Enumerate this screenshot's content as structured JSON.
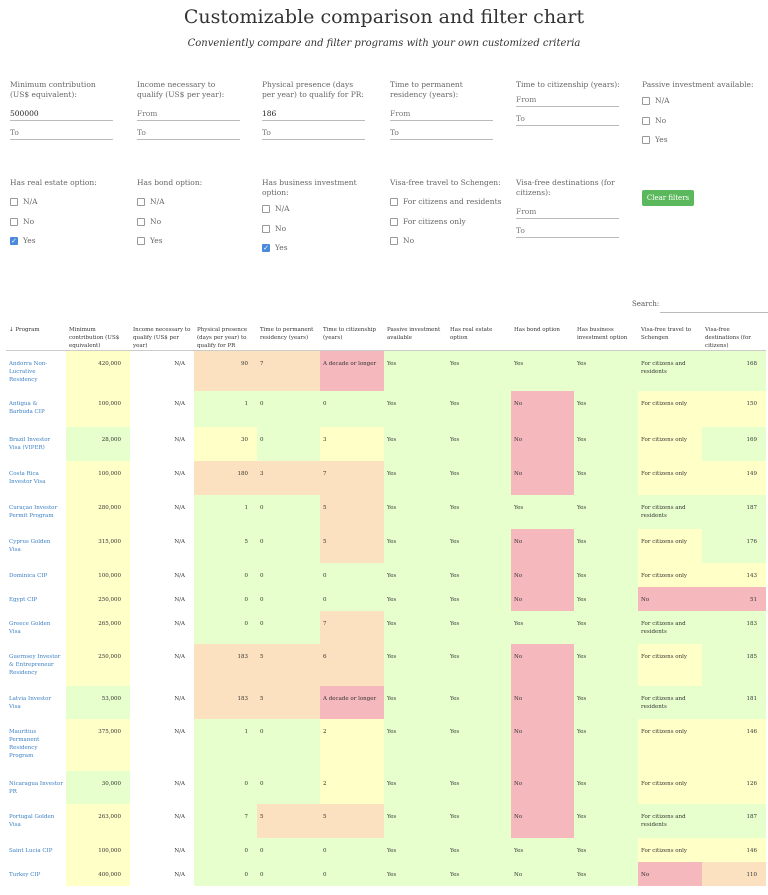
{
  "header": {
    "title": "Customizable comparison and filter chart",
    "subtitle": "Conveniently compare and filter programs with your own customized criteria"
  },
  "filters": {
    "min_contribution": {
      "label": "Minimum contribution (US$ equivalent):",
      "from_value": "500000",
      "to_placeholder": "To"
    },
    "income": {
      "label": "Income necessary to qualify (US$ per year):",
      "from_placeholder": "From",
      "to_placeholder": "To"
    },
    "presence": {
      "label": "Physical presence (days per year) to qualify for PR:",
      "from_value": "186",
      "to_placeholder": "To"
    },
    "time_pr": {
      "label": "Time to permanent residency (years):",
      "from_placeholder": "From",
      "to_placeholder": "To"
    },
    "time_cit": {
      "label": "Time to citizenship (years):",
      "from_placeholder": "From",
      "to_placeholder": "To"
    },
    "passive": {
      "label": "Passive investment available:",
      "options": [
        "N/A",
        "No",
        "Yes"
      ]
    },
    "real_estate": {
      "label": "Has real estate option:",
      "options": [
        "N/A",
        "No",
        "Yes"
      ]
    },
    "bond": {
      "label": "Has bond option:",
      "options": [
        "N/A",
        "No",
        "Yes"
      ]
    },
    "business": {
      "label": "Has business investment option:",
      "options": [
        "N/A",
        "No",
        "Yes"
      ]
    },
    "schengen": {
      "label": "Visa-free travel to Schengen:",
      "options": [
        "For citizens and residents",
        "For citizens only",
        "No"
      ]
    },
    "visa_free": {
      "label": "Visa-free destinations (for citizens):",
      "from_placeholder": "From",
      "to_placeholder": "To"
    },
    "clear_label": "Clear filters"
  },
  "search_label": "Search:",
  "table": {
    "sort_arrow": "↓",
    "headers": [
      "Program",
      "Minimum contribution (US$ equivalent)",
      "Income necessary to qualify (US$ per year)",
      "Physical presence (days per year) to qualify for PR",
      "Time to permanent residency (years)",
      "Time to citizenship (years)",
      "Passive investment available",
      "Has real estate option",
      "Has bond option",
      "Has business investment option",
      "Visa-free travel to Schengen",
      "Visa-free destinations (for citizens)"
    ],
    "rows": [
      {
        "h": 40,
        "cells": [
          "Andorra Non-Lucrative Residency",
          "420,000",
          "N/A",
          "90",
          "7",
          "A decade or longer",
          "Yes",
          "Yes",
          "Yes",
          "Yes",
          "For citizens and residents",
          "168"
        ],
        "colors": [
          "w",
          "y",
          "w",
          "o",
          "o",
          "r",
          "g",
          "g",
          "g",
          "g",
          "g",
          "g"
        ]
      },
      {
        "h": 36,
        "cells": [
          "Antigua & Barbuda CIP",
          "100,000",
          "N/A",
          "1",
          "0",
          "0",
          "Yes",
          "Yes",
          "No",
          "Yes",
          "For citizens only",
          "150"
        ],
        "colors": [
          "w",
          "y",
          "w",
          "g",
          "g",
          "g",
          "g",
          "g",
          "r",
          "g",
          "y",
          "y"
        ]
      },
      {
        "h": 34,
        "cells": [
          "Brazil Investor Visa (VIPER)",
          "28,000",
          "N/A",
          "30",
          "0",
          "3",
          "Yes",
          "Yes",
          "No",
          "Yes",
          "For citizens only",
          "169"
        ],
        "colors": [
          "w",
          "g",
          "w",
          "y",
          "g",
          "y",
          "g",
          "g",
          "r",
          "g",
          "y",
          "g"
        ]
      },
      {
        "h": 34,
        "cells": [
          "Costa Rica Investor Visa",
          "100,000",
          "N/A",
          "180",
          "3",
          "7",
          "Yes",
          "Yes",
          "No",
          "Yes",
          "For citizens only",
          "149"
        ],
        "colors": [
          "w",
          "y",
          "w",
          "o",
          "o",
          "o",
          "g",
          "g",
          "r",
          "g",
          "y",
          "y"
        ]
      },
      {
        "h": 34,
        "cells": [
          "Curaçao Investor Permit Program",
          "280,000",
          "N/A",
          "1",
          "0",
          "5",
          "Yes",
          "Yes",
          "Yes",
          "Yes",
          "For citizens and residents",
          "187"
        ],
        "colors": [
          "w",
          "y",
          "w",
          "g",
          "g",
          "o",
          "g",
          "g",
          "g",
          "g",
          "g",
          "g"
        ]
      },
      {
        "h": 34,
        "cells": [
          "Cyprus Golden Visa",
          "315,000",
          "N/A",
          "5",
          "0",
          "5",
          "Yes",
          "Yes",
          "No",
          "Yes",
          "For citizens only",
          "176"
        ],
        "colors": [
          "w",
          "y",
          "w",
          "g",
          "g",
          "o",
          "g",
          "g",
          "r",
          "g",
          "y",
          "g"
        ]
      },
      {
        "h": 24,
        "cells": [
          "Dominica CIP",
          "100,000",
          "N/A",
          "0",
          "0",
          "0",
          "Yes",
          "Yes",
          "No",
          "Yes",
          "For citizens only",
          "143"
        ],
        "colors": [
          "w",
          "y",
          "w",
          "g",
          "g",
          "g",
          "g",
          "g",
          "r",
          "g",
          "y",
          "y"
        ]
      },
      {
        "h": 24,
        "cells": [
          "Egypt CIP",
          "250,000",
          "N/A",
          "0",
          "0",
          "0",
          "Yes",
          "Yes",
          "No",
          "Yes",
          "No",
          "51"
        ],
        "colors": [
          "w",
          "y",
          "w",
          "g",
          "g",
          "g",
          "g",
          "g",
          "r",
          "g",
          "r",
          "r"
        ]
      },
      {
        "h": 33,
        "cells": [
          "Greece Golden Visa",
          "265,000",
          "N/A",
          "0",
          "0",
          "7",
          "Yes",
          "Yes",
          "Yes",
          "Yes",
          "For citizens and residents",
          "183"
        ],
        "colors": [
          "w",
          "y",
          "w",
          "g",
          "g",
          "o",
          "g",
          "g",
          "g",
          "g",
          "g",
          "g"
        ]
      },
      {
        "h": 42,
        "cells": [
          "Guernsey Investor & Entrepreneur Residency",
          "250,000",
          "N/A",
          "183",
          "5",
          "6",
          "Yes",
          "Yes",
          "No",
          "Yes",
          "For citizens only",
          "185"
        ],
        "colors": [
          "w",
          "y",
          "w",
          "o",
          "o",
          "o",
          "g",
          "g",
          "r",
          "g",
          "y",
          "g"
        ]
      },
      {
        "h": 33,
        "cells": [
          "Latvia Investor Visa",
          "53,000",
          "N/A",
          "183",
          "5",
          "A decade or longer",
          "Yes",
          "Yes",
          "No",
          "Yes",
          "For citizens and residents",
          "181"
        ],
        "colors": [
          "w",
          "g",
          "w",
          "o",
          "o",
          "r",
          "g",
          "g",
          "r",
          "g",
          "g",
          "g"
        ]
      },
      {
        "h": 52,
        "cells": [
          "Mauritius Permanent Residency Program",
          "375,000",
          "N/A",
          "1",
          "0",
          "2",
          "Yes",
          "Yes",
          "No",
          "Yes",
          "For citizens only",
          "146"
        ],
        "colors": [
          "w",
          "y",
          "w",
          "g",
          "g",
          "y",
          "g",
          "g",
          "r",
          "g",
          "y",
          "y"
        ]
      },
      {
        "h": 33,
        "cells": [
          "Nicaragua Investor PR",
          "30,000",
          "N/A",
          "0",
          "0",
          "2",
          "Yes",
          "Yes",
          "No",
          "Yes",
          "For citizens only",
          "126"
        ],
        "colors": [
          "w",
          "g",
          "w",
          "g",
          "g",
          "y",
          "g",
          "g",
          "r",
          "g",
          "y",
          "y"
        ]
      },
      {
        "h": 34,
        "cells": [
          "Portugal Golden Visa",
          "263,000",
          "N/A",
          "7",
          "5",
          "5",
          "Yes",
          "Yes",
          "No",
          "Yes",
          "For citizens and residents",
          "187"
        ],
        "colors": [
          "w",
          "y",
          "w",
          "g",
          "o",
          "o",
          "g",
          "g",
          "r",
          "g",
          "g",
          "g"
        ]
      },
      {
        "h": 24,
        "cells": [
          "Saint Lucia CIP",
          "100,000",
          "N/A",
          "0",
          "0",
          "0",
          "Yes",
          "Yes",
          "Yes",
          "Yes",
          "For citizens only",
          "146"
        ],
        "colors": [
          "w",
          "y",
          "w",
          "g",
          "g",
          "g",
          "g",
          "g",
          "g",
          "g",
          "y",
          "y"
        ]
      },
      {
        "h": 24,
        "cells": [
          "Turkey CIP",
          "400,000",
          "N/A",
          "0",
          "0",
          "0",
          "Yes",
          "Yes",
          "No",
          "Yes",
          "No",
          "110"
        ],
        "colors": [
          "w",
          "y",
          "w",
          "g",
          "g",
          "g",
          "g",
          "g",
          "g",
          "g",
          "r",
          "o"
        ]
      }
    ]
  }
}
